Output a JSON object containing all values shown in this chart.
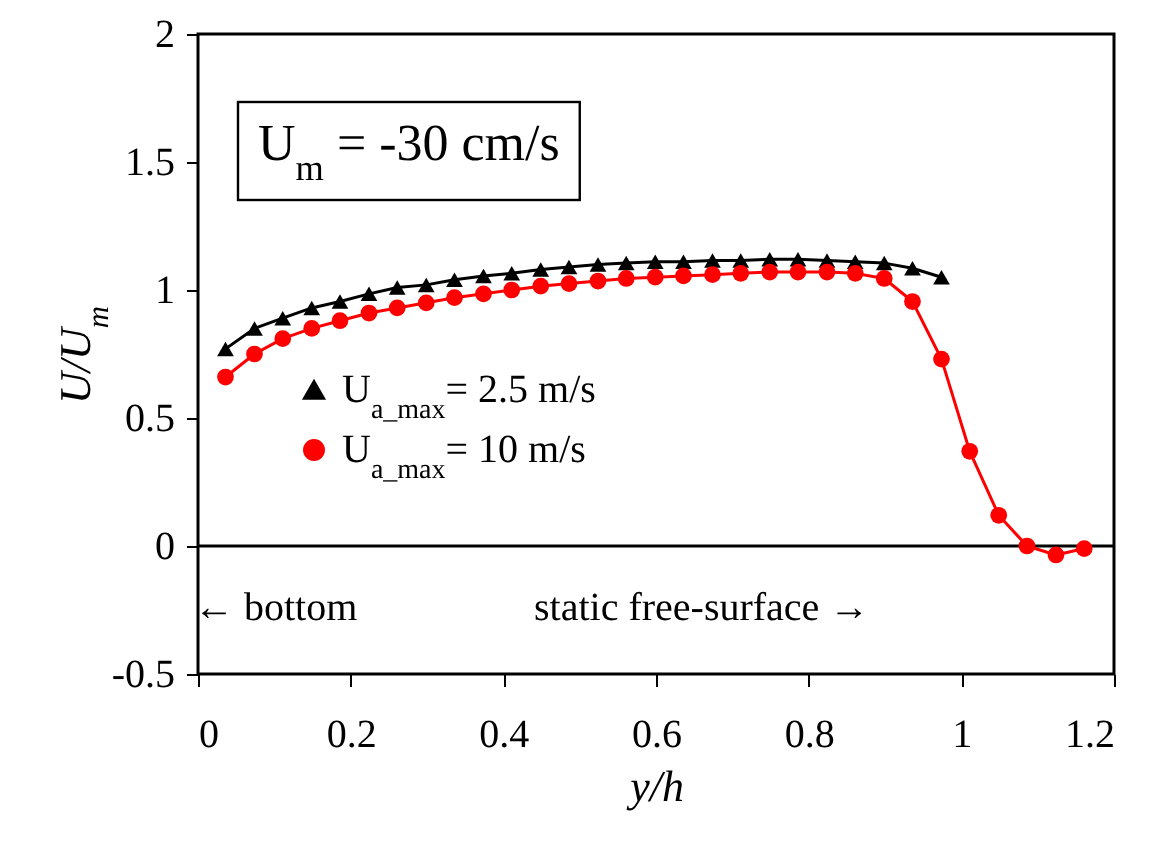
{
  "chart_data": {
    "type": "line",
    "xlabel": "y/h",
    "ylabel": "U/U$_{m}$",
    "annotations": [
      "U$_{m}$ = -30 cm/s",
      "← bottom",
      "static free-surface →"
    ],
    "x": [
      0.036,
      0.074,
      0.111,
      0.149,
      0.186,
      0.224,
      0.261,
      0.299,
      0.336,
      0.374,
      0.411,
      0.449,
      0.486,
      0.524,
      0.561,
      0.599,
      0.636,
      0.674,
      0.711,
      0.749,
      0.786,
      0.824,
      0.861,
      0.899,
      0.936,
      0.974,
      1.011,
      1.049,
      1.086,
      1.124,
      1.161
    ],
    "series": [
      {
        "name": "U$_{a_max}$= 2.5 m/s",
        "color": "#000000",
        "marker": "triangle",
        "values": [
          0.77,
          0.85,
          0.89,
          0.93,
          0.955,
          0.985,
          1.01,
          1.02,
          1.04,
          1.055,
          1.065,
          1.08,
          1.09,
          1.1,
          1.105,
          1.11,
          1.11,
          1.115,
          1.115,
          1.12,
          1.12,
          1.115,
          1.11,
          1.105,
          1.085,
          1.05,
          null,
          null,
          null,
          null,
          null
        ]
      },
      {
        "name": "U$_{a_max}$= 10 m/s",
        "color": "#ff0000",
        "marker": "circle",
        "values": [
          0.66,
          0.75,
          0.81,
          0.85,
          0.88,
          0.91,
          0.93,
          0.95,
          0.97,
          0.985,
          1.0,
          1.015,
          1.025,
          1.035,
          1.045,
          1.05,
          1.055,
          1.06,
          1.065,
          1.07,
          1.07,
          1.07,
          1.065,
          1.045,
          0.955,
          0.73,
          0.37,
          0.12,
          0.0,
          -0.035,
          -0.01
        ]
      }
    ],
    "xlim": [
      0,
      1.2
    ],
    "xticks": [
      0,
      0.2,
      0.4,
      0.6,
      0.8,
      1,
      1.2
    ],
    "ylim": [
      -0.5,
      2
    ],
    "yticks": [
      -0.5,
      0,
      0.5,
      1,
      1.5,
      2
    ],
    "ref_lines": [
      {
        "axis": "y",
        "value": 0,
        "color": "#000000"
      }
    ],
    "legend": "left",
    "grid": false,
    "line_style": "solid"
  }
}
